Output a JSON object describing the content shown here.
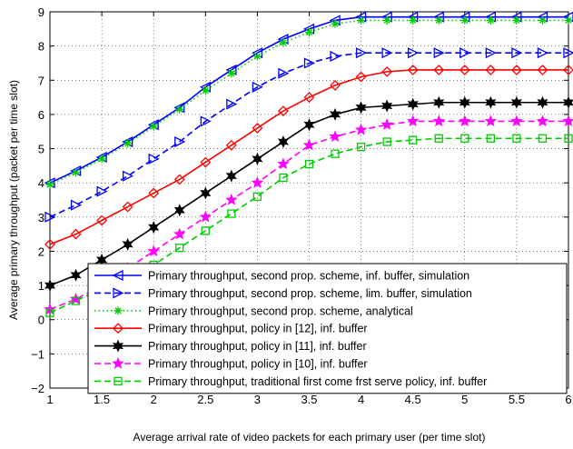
{
  "chart_data": {
    "type": "line",
    "title": "",
    "xlabel": "Average arrival rate of video packets for each primary user (per time slot)",
    "ylabel": "Average primary throughput (packet per time slot)",
    "xlim": [
      1,
      6
    ],
    "ylim": [
      -2,
      9
    ],
    "xticks": [
      1,
      1.5,
      2,
      2.5,
      3,
      3.5,
      4,
      4.5,
      5,
      5.5,
      6
    ],
    "xtick_labels": [
      "1",
      "1.5",
      "2",
      "2.5",
      "3",
      "3.5",
      "4",
      "4.5",
      "5",
      "5.5",
      "6"
    ],
    "yticks": [
      -2,
      -1,
      0,
      1,
      2,
      3,
      4,
      5,
      6,
      7,
      8,
      9
    ],
    "ytick_labels": [
      "−2",
      "−1",
      "0",
      "1",
      "2",
      "3",
      "4",
      "5",
      "6",
      "7",
      "8",
      "9"
    ],
    "grid": true,
    "legend_position": "bottom-right",
    "x": [
      1,
      1.25,
      1.5,
      1.75,
      2,
      2.25,
      2.5,
      2.75,
      3,
      3.25,
      3.5,
      3.75,
      4,
      4.25,
      4.5,
      4.75,
      5,
      5.25,
      5.5,
      5.75,
      6
    ],
    "series": [
      {
        "name": "Primary throughput, second prop. scheme, inf. buffer, simulation",
        "color": "#0000ff",
        "dash": "solid",
        "marker": "triangle-left",
        "values": [
          4.0,
          4.35,
          4.75,
          5.2,
          5.7,
          6.2,
          6.8,
          7.3,
          7.8,
          8.2,
          8.5,
          8.75,
          8.85,
          8.85,
          8.85,
          8.85,
          8.85,
          8.85,
          8.85,
          8.85,
          8.85
        ]
      },
      {
        "name": "Primary throughput, second prop. scheme, lim. buffer, simulation",
        "color": "#0000ff",
        "dash": "dashed",
        "marker": "triangle-right",
        "values": [
          3.0,
          3.35,
          3.75,
          4.2,
          4.7,
          5.2,
          5.8,
          6.3,
          6.8,
          7.2,
          7.5,
          7.7,
          7.8,
          7.8,
          7.8,
          7.8,
          7.8,
          7.8,
          7.8,
          7.8,
          7.8
        ]
      },
      {
        "name": "Primary throughput, second prop. scheme, analytical",
        "color": "#00cc00",
        "dash": "dotted",
        "marker": "asterisk",
        "values": [
          3.95,
          4.3,
          4.7,
          5.15,
          5.65,
          6.15,
          6.7,
          7.2,
          7.7,
          8.1,
          8.4,
          8.65,
          8.75,
          8.75,
          8.75,
          8.75,
          8.75,
          8.75,
          8.75,
          8.75,
          8.75
        ]
      },
      {
        "name": "Primary throughput, policy in [12], inf. buffer",
        "color": "#ff0000",
        "dash": "solid",
        "marker": "diamond",
        "values": [
          2.2,
          2.5,
          2.9,
          3.3,
          3.7,
          4.1,
          4.6,
          5.1,
          5.6,
          6.1,
          6.5,
          6.85,
          7.1,
          7.25,
          7.3,
          7.3,
          7.3,
          7.3,
          7.3,
          7.3,
          7.3
        ]
      },
      {
        "name": "Primary throughput, policy in [11], inf. buffer",
        "color": "#000000",
        "dash": "solid",
        "marker": "hexagram",
        "values": [
          1.0,
          1.3,
          1.75,
          2.2,
          2.7,
          3.2,
          3.7,
          4.2,
          4.7,
          5.2,
          5.7,
          6.0,
          6.2,
          6.25,
          6.3,
          6.35,
          6.35,
          6.35,
          6.35,
          6.35,
          6.35
        ]
      },
      {
        "name": "Primary throughput, policy in [10], inf. buffer",
        "color": "#ff00ff",
        "dash": "dashed",
        "marker": "pentagram",
        "values": [
          0.3,
          0.6,
          1.0,
          1.5,
          2.0,
          2.5,
          3.0,
          3.5,
          4.0,
          4.55,
          5.1,
          5.35,
          5.55,
          5.7,
          5.8,
          5.8,
          5.8,
          5.8,
          5.8,
          5.8,
          5.8
        ]
      },
      {
        "name": "Primary throughput, traditional first come frst serve policy, inf. buffer",
        "color": "#00cc00",
        "dash": "dashed",
        "marker": "square",
        "values": [
          0.2,
          0.55,
          0.9,
          1.3,
          1.6,
          2.1,
          2.6,
          3.1,
          3.6,
          4.15,
          4.55,
          4.85,
          5.05,
          5.2,
          5.25,
          5.3,
          5.3,
          5.3,
          5.3,
          5.3,
          5.3
        ]
      }
    ]
  }
}
